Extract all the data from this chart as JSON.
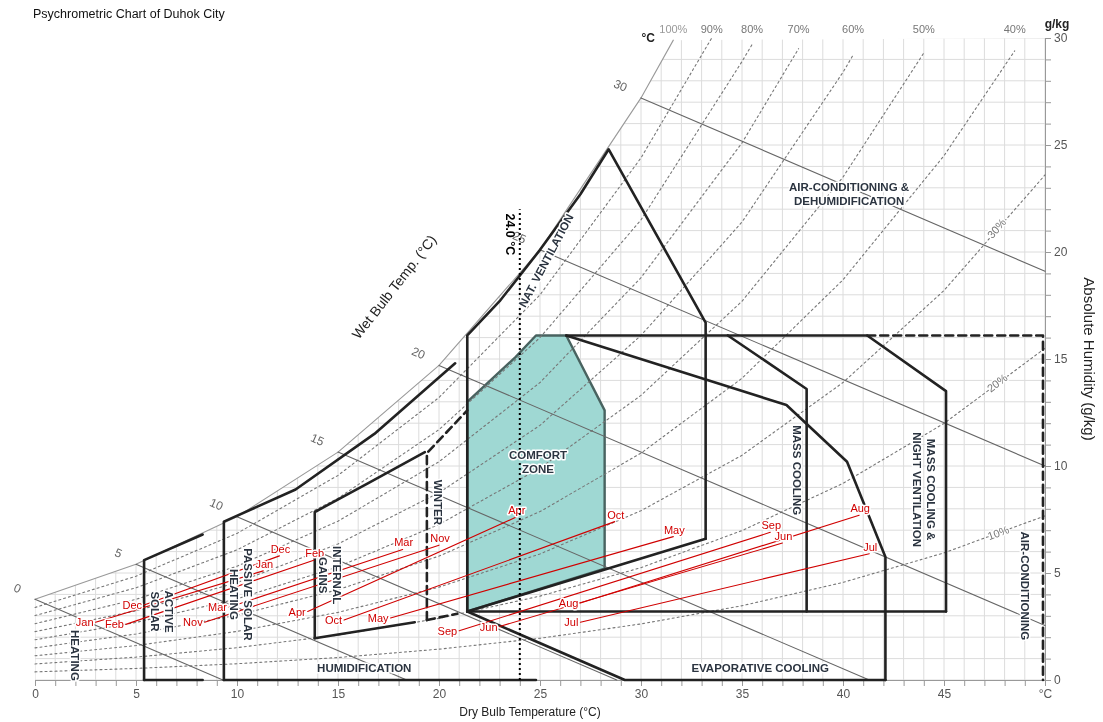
{
  "chart_data": {
    "type": "line",
    "title": "Psychrometric Chart of Duhok City",
    "xlabel": "Dry Bulb Temperature (°C)",
    "ylabel": "Absolute Humidity (g/kg)",
    "xlim": [
      0,
      50
    ],
    "ylim": [
      0,
      30
    ],
    "xticks": [
      0,
      {
        "value": 1,
        "label": null
      },
      {
        "value": 2,
        "label": null
      },
      {
        "value": 3,
        "label": null
      },
      {
        "value": 4,
        "label": null
      },
      5,
      {
        "value": 6,
        "label": null
      },
      {
        "value": 7,
        "label": null
      },
      {
        "value": 8,
        "label": null
      },
      {
        "value": 9,
        "label": null
      },
      10,
      {
        "value": 11,
        "label": null
      },
      {
        "value": 12,
        "label": null
      },
      {
        "value": 13,
        "label": null
      },
      {
        "value": 14,
        "label": null
      },
      15,
      {
        "value": 16,
        "label": null
      },
      {
        "value": 17,
        "label": null
      },
      {
        "value": 18,
        "label": null
      },
      {
        "value": 19,
        "label": null
      },
      20,
      {
        "value": 21,
        "label": null
      },
      {
        "value": 22,
        "label": null
      },
      {
        "value": 23,
        "label": null
      },
      {
        "value": 24,
        "label": null
      },
      25,
      {
        "value": 26,
        "label": null
      },
      {
        "value": 27,
        "label": null
      },
      {
        "value": 28,
        "label": null
      },
      {
        "value": 29,
        "label": null
      },
      30,
      {
        "value": 31,
        "label": null
      },
      {
        "value": 32,
        "label": null
      },
      {
        "value": 33,
        "label": null
      },
      {
        "value": 34,
        "label": null
      },
      35,
      {
        "value": 36,
        "label": null
      },
      {
        "value": 37,
        "label": null
      },
      {
        "value": 38,
        "label": null
      },
      {
        "value": 39,
        "label": null
      },
      40,
      {
        "value": 41,
        "label": null
      },
      {
        "value": 42,
        "label": null
      },
      {
        "value": 43,
        "label": null
      },
      {
        "value": 44,
        "label": null
      },
      45,
      {
        "value": 46,
        "label": null
      },
      {
        "value": 47,
        "label": null
      },
      {
        "value": 48,
        "label": null
      },
      {
        "value": 49,
        "label": null
      },
      {
        "value": 50,
        "label": "°C"
      }
    ],
    "yticks": [
      0,
      {
        "value": 1,
        "label": null
      },
      {
        "value": 2,
        "label": null
      },
      {
        "value": 3,
        "label": null
      },
      {
        "value": 4,
        "label": null
      },
      5,
      {
        "value": 6,
        "label": null
      },
      {
        "value": 7,
        "label": null
      },
      {
        "value": 8,
        "label": null
      },
      {
        "value": 9,
        "label": null
      },
      10,
      {
        "value": 11,
        "label": null
      },
      {
        "value": 12,
        "label": null
      },
      {
        "value": 13,
        "label": null
      },
      {
        "value": 14,
        "label": null
      },
      15,
      {
        "value": 16,
        "label": null
      },
      {
        "value": 17,
        "label": null
      },
      {
        "value": 18,
        "label": null
      },
      {
        "value": 19,
        "label": null
      },
      20,
      {
        "value": 21,
        "label": null
      },
      {
        "value": 22,
        "label": null
      },
      {
        "value": 23,
        "label": null
      },
      {
        "value": 24,
        "label": null
      },
      25,
      {
        "value": 26,
        "label": null
      },
      {
        "value": 27,
        "label": null
      },
      {
        "value": 28,
        "label": null
      },
      {
        "value": 29,
        "label": null
      },
      30
    ],
    "grid": true,
    "ref_lines": [
      {
        "axis": "x",
        "value": 24,
        "label": "24.0 °C",
        "line_style": "dotted",
        "color": "#000000"
      }
    ],
    "series": [
      {
        "name": "100%",
        "color": "#999999",
        "line_style": "solid",
        "x": [
          0,
          5,
          10,
          15,
          20,
          25,
          30,
          31.6
        ],
        "values": [
          3.77,
          5.41,
          7.63,
          10.65,
          14.7,
          20.1,
          27.2,
          29.9
        ]
      },
      {
        "name": "90%",
        "color": "#777777",
        "line_style": "dotted",
        "x": [
          0,
          5,
          10,
          15,
          20,
          25,
          30,
          33.5
        ],
        "values": [
          3.39,
          4.85,
          6.85,
          9.56,
          13.2,
          18.0,
          24.4,
          30.0
        ]
      },
      {
        "name": "80%",
        "color": "#777777",
        "line_style": "dotted",
        "x": [
          0,
          5,
          10,
          15,
          20,
          25,
          30,
          35,
          35.5
        ],
        "values": [
          3.01,
          4.31,
          6.08,
          8.49,
          11.7,
          16.0,
          21.5,
          28.9,
          29.7
        ]
      },
      {
        "name": "70%",
        "color": "#777777",
        "line_style": "dotted",
        "x": [
          0,
          5,
          10,
          15,
          20,
          25,
          30,
          35,
          37.8
        ],
        "values": [
          2.63,
          3.77,
          5.32,
          7.42,
          10.2,
          13.9,
          18.8,
          25.1,
          29.5
        ]
      },
      {
        "name": "60%",
        "color": "#777777",
        "line_style": "dotted",
        "x": [
          0,
          5,
          10,
          15,
          20,
          25,
          30,
          35,
          40,
          40.5
        ],
        "values": [
          2.26,
          3.23,
          4.55,
          6.36,
          8.75,
          11.9,
          16.1,
          21.4,
          28.4,
          29.2
        ]
      },
      {
        "name": "50%",
        "color": "#777777",
        "line_style": "dotted",
        "x": [
          0,
          5,
          10,
          15,
          20,
          25,
          30,
          35,
          40,
          44
        ],
        "values": [
          1.88,
          2.69,
          3.79,
          5.29,
          7.27,
          9.9,
          13.3,
          17.7,
          23.5,
          29.3
        ]
      },
      {
        "name": "40%",
        "color": "#777777",
        "line_style": "dotted",
        "x": [
          0,
          5,
          10,
          15,
          20,
          25,
          30,
          35,
          40,
          45,
          48.5
        ],
        "values": [
          1.5,
          2.15,
          3.03,
          4.22,
          5.79,
          7.87,
          10.6,
          14.1,
          18.7,
          24.5,
          29.4
        ]
      },
      {
        "name": "30%",
        "color": "#777777",
        "line_style": "dotted",
        "x": [
          0,
          5,
          10,
          15,
          20,
          25,
          30,
          35,
          40,
          45,
          50
        ],
        "values": [
          1.13,
          1.61,
          2.27,
          3.16,
          4.34,
          5.89,
          7.91,
          10.5,
          13.9,
          18.2,
          23.6
        ]
      },
      {
        "name": "20%",
        "color": "#777777",
        "line_style": "dotted",
        "x": [
          0,
          5,
          10,
          15,
          20,
          25,
          30,
          35,
          40,
          45,
          50
        ],
        "values": [
          0.75,
          1.07,
          1.51,
          2.1,
          2.88,
          3.92,
          5.25,
          6.98,
          9.19,
          11.99,
          15.5
        ]
      },
      {
        "name": "10%",
        "color": "#777777",
        "line_style": "dotted",
        "x": [
          0,
          5,
          10,
          15,
          20,
          25,
          30,
          35,
          40,
          45,
          50
        ],
        "values": [
          0.38,
          0.54,
          0.76,
          1.05,
          1.44,
          1.95,
          2.62,
          3.47,
          4.56,
          5.94,
          7.67
        ]
      },
      {
        "name": "0",
        "color": "#666666",
        "x": [
          0,
          9.3
        ],
        "values": [
          3.77,
          0
        ]
      },
      {
        "name": "5",
        "color": "#666666",
        "x": [
          5,
          18.4
        ],
        "values": [
          5.41,
          0
        ]
      },
      {
        "name": "10",
        "color": "#666666",
        "x": [
          10,
          28.8
        ],
        "values": [
          7.63,
          0
        ]
      },
      {
        "name": "15",
        "color": "#666666",
        "x": [
          15,
          41.3
        ],
        "values": [
          10.65,
          0
        ]
      },
      {
        "name": "20",
        "color": "#666666",
        "x": [
          20,
          50
        ],
        "values": [
          14.7,
          2.55
        ]
      },
      {
        "name": "25",
        "color": "#666666",
        "x": [
          25,
          50
        ],
        "values": [
          20.1,
          10.0
        ]
      },
      {
        "name": "30",
        "color": "#666666",
        "x": [
          30,
          50
        ],
        "values": [
          27.2,
          19.1
        ]
      },
      {
        "type": "area",
        "color": "#9fd8d3",
        "x": [
          21.4,
          21.4,
          23.8,
          24.8,
          26.3,
          28.2,
          28.2,
          21.4
        ],
        "values": [
          3.2,
          13.0,
          15.1,
          16.1,
          16.1,
          12.6,
          5.2,
          3.2
        ]
      },
      {
        "color": "#222222",
        "x": [
          21.4,
          33.2
        ],
        "values": [
          3.2,
          6.6
        ]
      },
      {
        "color": "#222222",
        "x": [
          21.4,
          21.4,
          23,
          25,
          27,
          28.4,
          33.2,
          33.2
        ],
        "values": [
          3.2,
          16.1,
          17.7,
          20.1,
          22.7,
          24.8,
          16.7,
          6.6
        ]
      },
      {
        "color": "#222222",
        "x": [
          21.4,
          29.2,
          42.1
        ],
        "values": [
          3.2,
          0,
          0
        ]
      },
      {
        "color": "#222222",
        "x": [
          26.3,
          37.2,
          40.2,
          42.1,
          42.1
        ],
        "values": [
          16.1,
          12.85,
          10.2,
          5.75,
          0
        ]
      },
      {
        "color": "#222222",
        "x": [
          26.3,
          41.2,
          45.1,
          45.1
        ],
        "values": [
          16.1,
          16.1,
          13.5,
          3.2
        ]
      },
      {
        "color": "#222222",
        "x": [
          34.3,
          38.2,
          38.2
        ],
        "values": [
          16.1,
          13.6,
          3.2
        ]
      },
      {
        "color": "#222222",
        "x": [
          21.4,
          45.1
        ],
        "values": [
          3.2,
          3.2
        ]
      },
      {
        "color": "#222222",
        "line_style": "dashed",
        "x": [
          41.2,
          49.9,
          49.9
        ],
        "values": [
          16.1,
          16.1,
          0
        ]
      },
      {
        "color": "#222222",
        "line_style": "dashed",
        "x": [
          19.4,
          19.4,
          21.4
        ],
        "values": [
          2.8,
          10.6,
          12.6
        ]
      },
      {
        "color": "#222222",
        "line_style": "dashed",
        "x": [
          19.4,
          20.9
        ],
        "values": [
          2.8,
          3.1
        ]
      },
      {
        "color": "#222222",
        "x": [
          13.85,
          18.8
        ],
        "values": [
          1.95,
          2.7
        ]
      },
      {
        "color": "#222222",
        "x": [
          13.85,
          13.85,
          16.5,
          19.3
        ],
        "values": [
          1.95,
          7.85,
          9.2,
          10.65
        ]
      },
      {
        "color": "#222222",
        "x": [
          9.35,
          24.8
        ],
        "values": [
          0,
          0
        ]
      },
      {
        "color": "#222222",
        "x": [
          9.35,
          9.35,
          12.9,
          16.8,
          20.8
        ],
        "values": [
          0,
          7.4,
          8.9,
          11.5,
          14.8
        ]
      },
      {
        "color": "#222222",
        "x": [
          5.4,
          8.3
        ],
        "values": [
          0,
          0
        ]
      },
      {
        "color": "#222222",
        "x": [
          5.4,
          5.4,
          8.3
        ],
        "values": [
          0,
          5.6,
          6.8
        ]
      },
      {
        "name": "Jan",
        "color": "#d00000",
        "x": [
          3.0,
          11.3
        ],
        "values": [
          2.7,
          5.1
        ]
      },
      {
        "name": "Feb",
        "color": "#d00000",
        "x": [
          4.5,
          13.8
        ],
        "values": [
          2.6,
          5.6
        ]
      },
      {
        "name": "Mar",
        "color": "#d00000",
        "x": [
          9.6,
          18.2
        ],
        "values": [
          3.4,
          6.1
        ]
      },
      {
        "name": "Apr",
        "color": "#d00000",
        "x": [
          13.5,
          23.8
        ],
        "values": [
          3.2,
          7.6
        ]
      },
      {
        "name": "May",
        "color": "#d00000",
        "x": [
          17.6,
          31.6
        ],
        "values": [
          2.9,
          6.7
        ]
      },
      {
        "name": "Jun",
        "color": "#d00000",
        "x": [
          23.0,
          37.0
        ],
        "values": [
          2.5,
          6.4
        ]
      },
      {
        "name": "Jul",
        "color": "#d00000",
        "x": [
          27.0,
          41.3
        ],
        "values": [
          2.7,
          5.9
        ]
      },
      {
        "name": "Aug",
        "color": "#d00000",
        "x": [
          27.0,
          40.8
        ],
        "values": [
          3.6,
          7.7
        ]
      },
      {
        "name": "Sep",
        "color": "#d00000",
        "x": [
          21.0,
          36.4
        ],
        "values": [
          2.3,
          6.9
        ]
      },
      {
        "name": "Oct",
        "color": "#d00000",
        "x": [
          15.3,
          28.7
        ],
        "values": [
          2.8,
          7.4
        ]
      },
      {
        "name": "Nov",
        "color": "#d00000",
        "x": [
          8.4,
          20.0
        ],
        "values": [
          2.7,
          6.3
        ]
      },
      {
        "name": "Dec",
        "color": "#d00000",
        "x": [
          5.4,
          12.1
        ],
        "values": [
          3.5,
          5.8
        ]
      }
    ],
    "annotations": [
      "AIR-CONDITIONING & DEHUMIDIFICATION",
      "NAT. VENTILATION",
      "COMFORT ZONE",
      "MASS COOLING",
      "MASS COOLING & NIGHT VENTILATION",
      "AIR-CONDITIONING",
      "WINTER",
      "INTERNAL GAINS",
      "PASSIVE SOLAR HEATING",
      "ACTIVE SOLAR",
      "HEATING",
      "HUMIDIFICATION",
      "EVAPORATIVE COOLING",
      "Wet Bulb Temp. (°C)",
      "°C",
      "g/kg"
    ]
  }
}
